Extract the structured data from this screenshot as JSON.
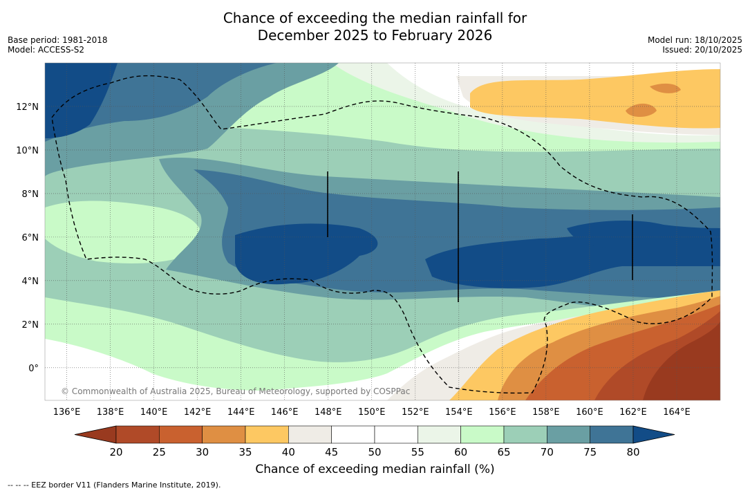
{
  "header": {
    "title_line1": "Chance of exceeding the median rainfall for",
    "title_line2": "December 2025 to February 2026",
    "base_period": "Base period: 1981-2018",
    "model": "Model: ACCESS-S2",
    "model_run": "Model run: 18/10/2025",
    "issued": "Issued: 20/10/2025"
  },
  "map": {
    "copyright": "© Commonwealth of Australia 2025, Bureau of Meteorology, supported by COSPPac",
    "lat_labels": [
      "12°N",
      "10°N",
      "8°N",
      "6°N",
      "4°N",
      "2°N",
      "0°"
    ],
    "lat_values": [
      12,
      10,
      8,
      6,
      4,
      2,
      0
    ],
    "lon_labels": [
      "136°E",
      "138°E",
      "140°E",
      "142°E",
      "144°E",
      "146°E",
      "148°E",
      "150°E",
      "152°E",
      "154°E",
      "156°E",
      "158°E",
      "160°E",
      "162°E",
      "164°E"
    ],
    "lon_values": [
      136,
      138,
      140,
      142,
      144,
      146,
      148,
      150,
      152,
      154,
      156,
      158,
      160,
      162,
      164
    ],
    "lon_range": [
      135,
      166
    ],
    "lat_range": [
      -1.5,
      14
    ]
  },
  "colorbar": {
    "ticks": [
      "20",
      "25",
      "30",
      "35",
      "40",
      "45",
      "50",
      "55",
      "60",
      "65",
      "70",
      "75",
      "80"
    ],
    "colors": [
      "#993a1f",
      "#b04a28",
      "#c9612f",
      "#df8f43",
      "#fdc862",
      "#efece6",
      "#ffffff",
      "#ffffff",
      "#ebf5e8",
      "#c9fac8",
      "#9ccfb7",
      "#6a9fa3",
      "#3f7496",
      "#124c87"
    ],
    "label": "Chance of exceeding median rainfall (%)"
  },
  "legend": {
    "eez": "--  --  -- EEZ border V11 (Flanders Marine Institute, 2019)."
  }
}
